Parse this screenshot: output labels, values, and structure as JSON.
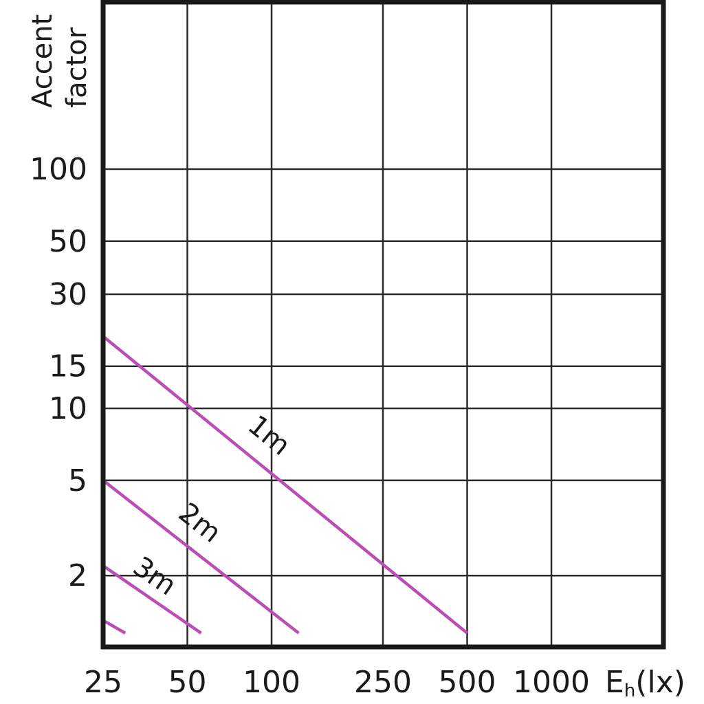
{
  "chart_data": {
    "type": "line",
    "title": "",
    "xlabel": "E",
    "xlabel_sub": "h",
    "xlabel_unit": "(lx)",
    "ylabel_line1": "Accent",
    "ylabel_line2": "factor",
    "x_scale": "log",
    "y_scale": "log",
    "xlim": [
      25,
      2000
    ],
    "ylim": [
      1.15,
      800
    ],
    "x_ticks": [
      25,
      50,
      100,
      250,
      500,
      1000
    ],
    "x_tick_labels": [
      "25",
      "50",
      "100",
      "250",
      "500",
      "1000"
    ],
    "y_ticks": [
      2,
      5,
      10,
      15,
      30,
      50,
      100
    ],
    "y_tick_labels": [
      "2",
      "5",
      "10",
      "15",
      "30",
      "50",
      "100"
    ],
    "grid": true,
    "line_color": "#b94fb5",
    "series": [
      {
        "name": "1m",
        "x": [
          25,
          500
        ],
        "y": [
          20,
          1.15
        ]
      },
      {
        "name": "2m",
        "x": [
          25,
          125
        ],
        "y": [
          5,
          1.15
        ]
      },
      {
        "name": "3m",
        "x": [
          25,
          56
        ],
        "y": [
          2.2,
          1.15
        ]
      },
      {
        "name": "",
        "x": [
          25,
          30
        ],
        "y": [
          1.3,
          1.15
        ]
      }
    ]
  }
}
